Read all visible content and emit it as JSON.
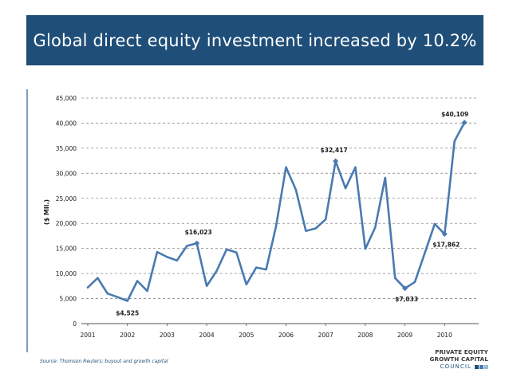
{
  "title": "Global direct equity investment increased by 10.2%",
  "source": "Source: Thomson Reuters; buyout and growth capital",
  "logo": {
    "line1": "PRIVATE EQUITY",
    "line2": "GROWTH CAPITAL",
    "line3": "COUNCIL"
  },
  "colors": {
    "banner": "#1F4E79",
    "line": "#4A7AB0",
    "logo_squares": [
      "#1F4E79",
      "#4A7AB0",
      "#9DB7D5"
    ]
  },
  "chart_data": {
    "type": "line",
    "title": "",
    "xlabel": "",
    "ylabel": "($ Mil.)",
    "ylim": [
      0,
      45000
    ],
    "yticks": [
      0,
      5000,
      10000,
      15000,
      20000,
      25000,
      30000,
      35000,
      40000,
      45000
    ],
    "ytick_labels": [
      "0",
      "5,000",
      "10,000",
      "15,000",
      "20,000",
      "25,000",
      "30,000",
      "35,000",
      "40,000",
      "45,000"
    ],
    "xlim": [
      2001,
      2010.75
    ],
    "xticks": [
      2001,
      2002,
      2003,
      2004,
      2005,
      2006,
      2007,
      2008,
      2009,
      2010
    ],
    "xtick_labels": [
      "2001",
      "2002",
      "2003",
      "2004",
      "2005",
      "2006",
      "2007",
      "2008",
      "2009",
      "2010"
    ],
    "grid": "horizontal dashed",
    "series": [
      {
        "x": [
          2001.0,
          2001.25,
          2001.5,
          2001.75,
          2002.0,
          2002.25,
          2002.5,
          2002.75,
          2003.0,
          2003.25,
          2003.5,
          2003.75,
          2004.0,
          2004.25,
          2004.5,
          2004.75,
          2005.0,
          2005.25,
          2005.5,
          2005.75,
          2006.0,
          2006.25,
          2006.5,
          2006.75,
          2007.0,
          2007.25,
          2007.5,
          2007.75,
          2008.0,
          2008.25,
          2008.5,
          2008.75,
          2009.0,
          2009.25,
          2009.5,
          2009.75,
          2010.0,
          2010.25,
          2010.5
        ],
        "values": [
          7200,
          9100,
          6000,
          5300,
          4525,
          8500,
          6500,
          14300,
          13300,
          12600,
          15500,
          16023,
          7500,
          10500,
          14800,
          14200,
          7800,
          11200,
          10800,
          19500,
          31200,
          26700,
          18500,
          19000,
          20800,
          32417,
          27000,
          31200,
          14900,
          19200,
          29100,
          9100,
          7033,
          8300,
          14100,
          19900,
          17862,
          36400,
          40109
        ]
      }
    ],
    "annotations": [
      {
        "label": "$4,525",
        "x": 2002.0,
        "y": 4525,
        "marker": false
      },
      {
        "label": "$16,023",
        "x": 2003.75,
        "y": 16023,
        "marker": true
      },
      {
        "label": "$32,417",
        "x": 2007.25,
        "y": 32417,
        "marker": true
      },
      {
        "label": "$7,033",
        "x": 2009.0,
        "y": 7033,
        "marker": true
      },
      {
        "label": "$17,862",
        "x": 2010.0,
        "y": 17862,
        "marker": true
      },
      {
        "label": "$40,109",
        "x": 2010.5,
        "y": 40109,
        "marker": true
      }
    ]
  }
}
